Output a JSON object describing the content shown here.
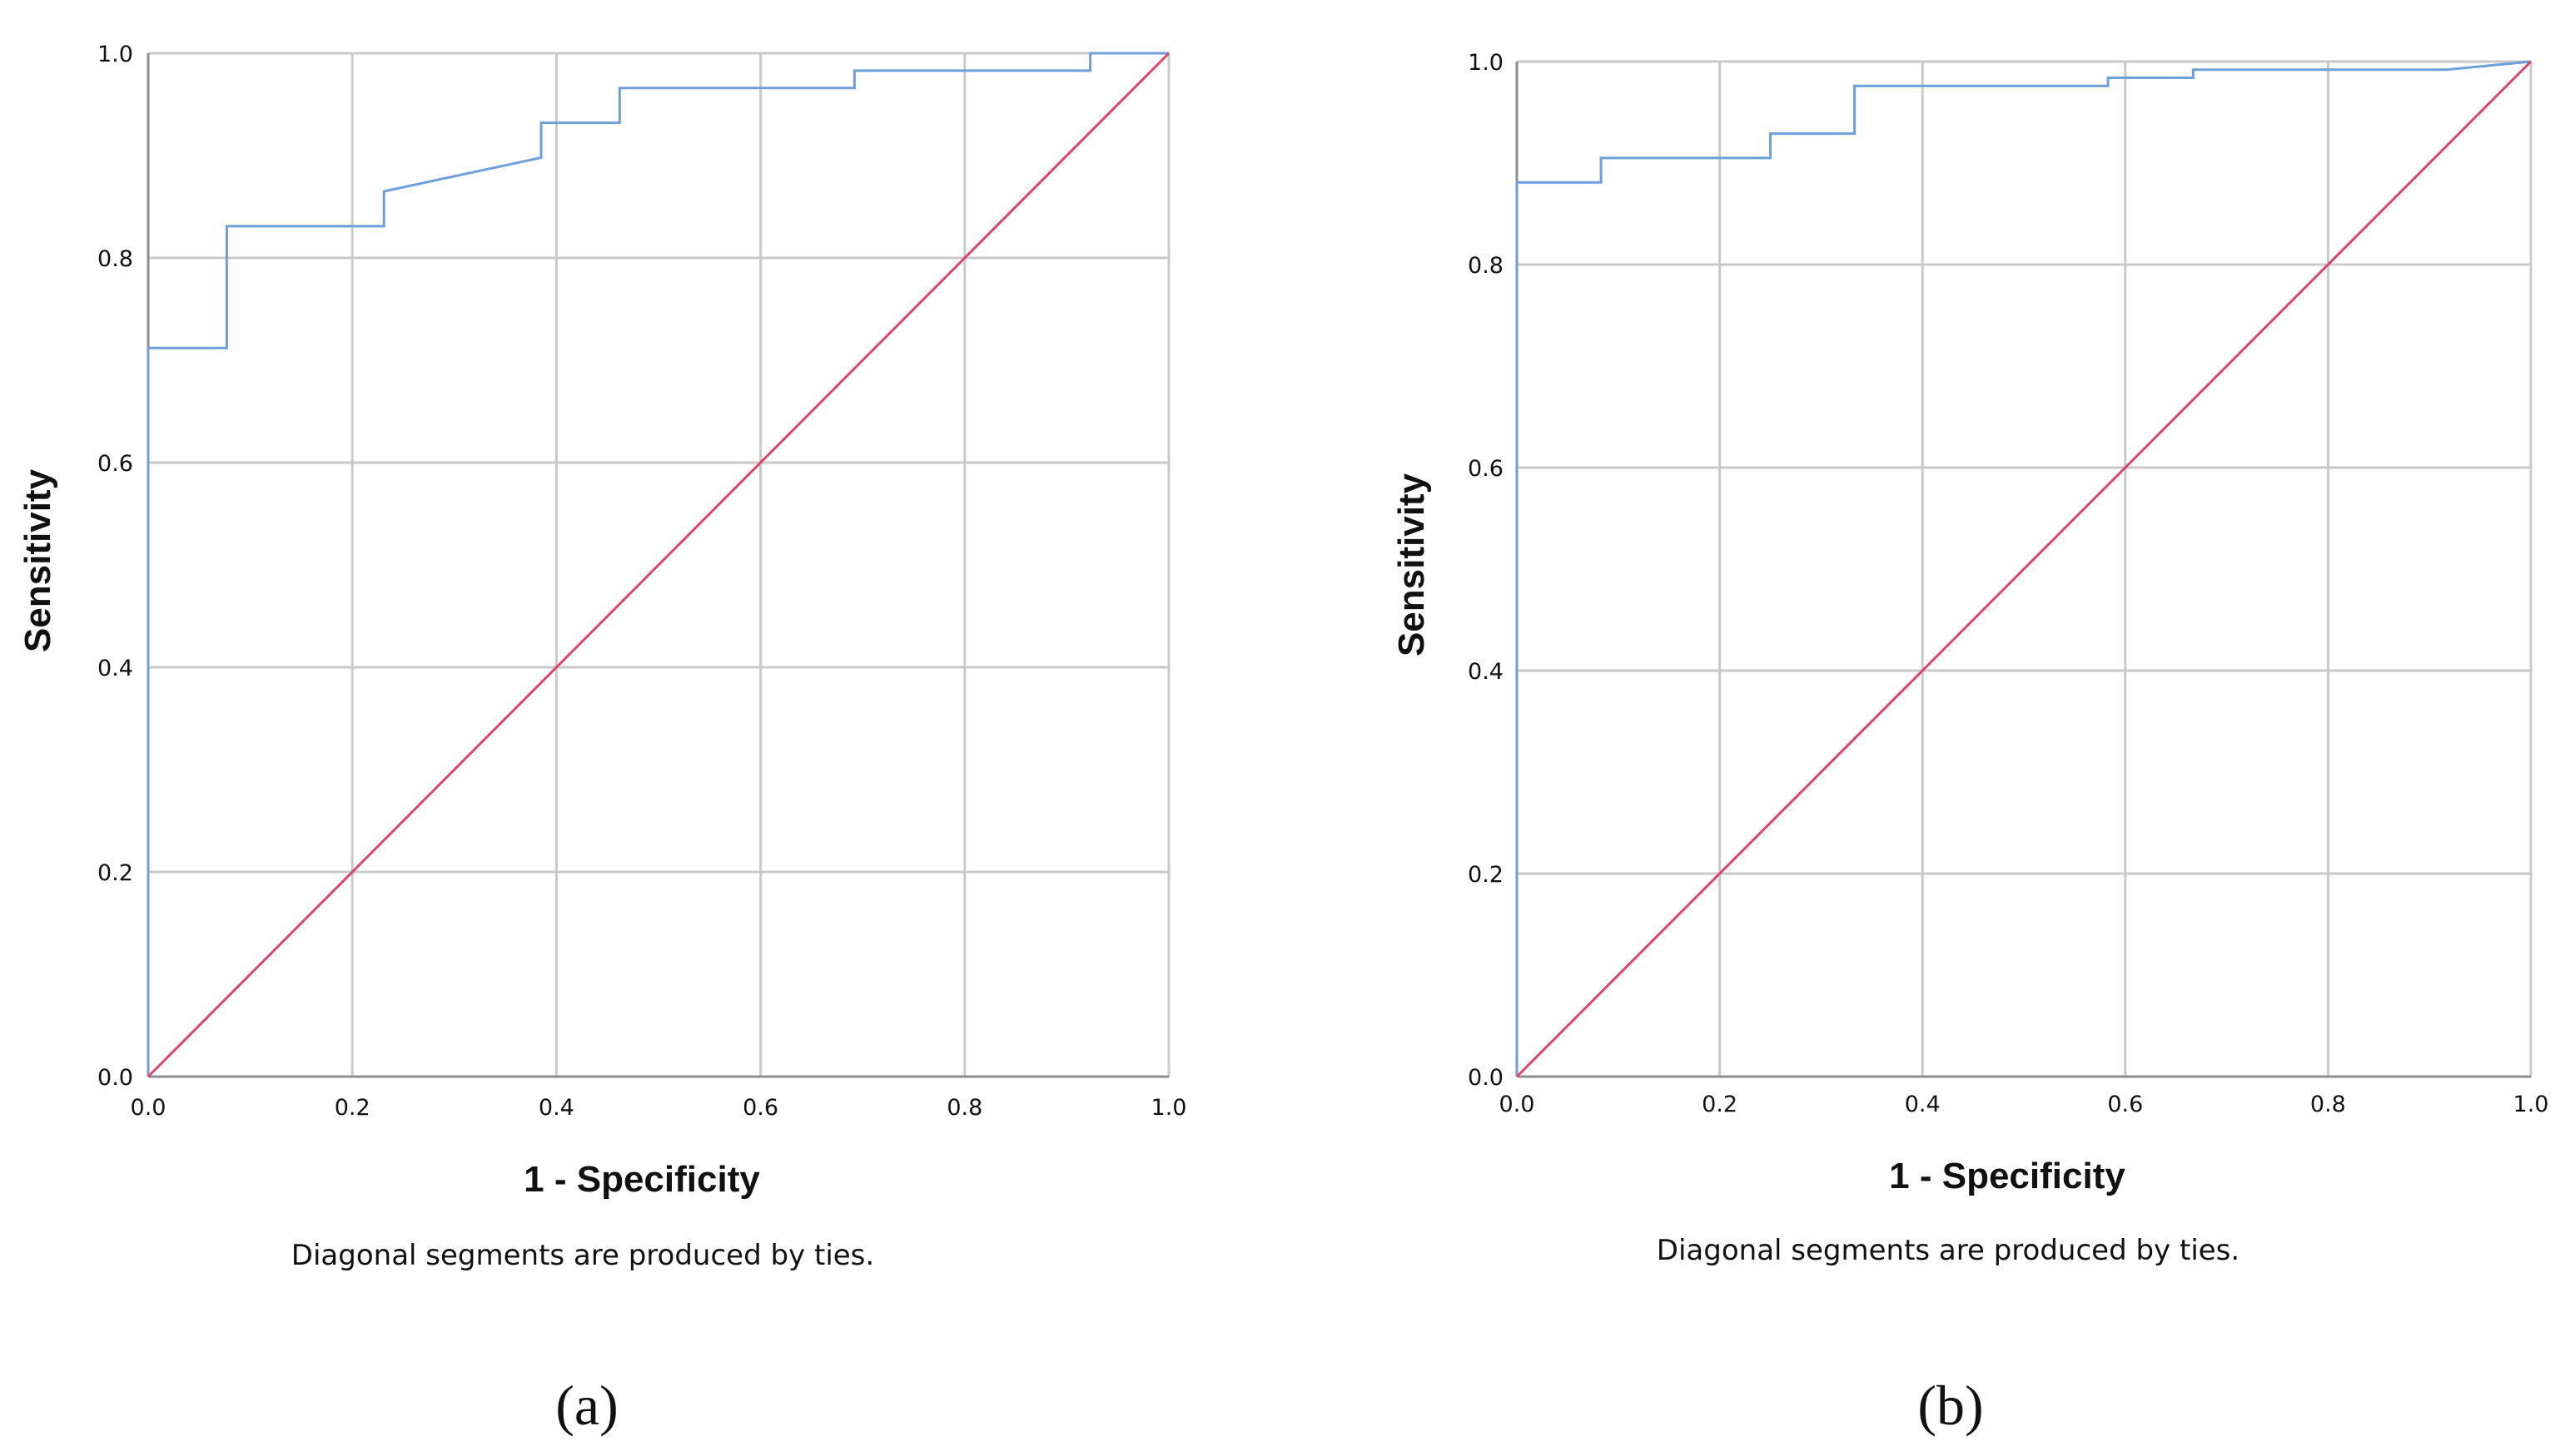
{
  "colors": {
    "roc_curve": "#6f9fdb",
    "reference_line": "#e0436b",
    "grid": "#c9c9c9",
    "axis": "#8c8c8c"
  },
  "chart_data": [
    {
      "type": "line",
      "panel_label": "(a)",
      "xlabel": "1 - Specificity",
      "ylabel": "Sensitivity",
      "footnote": "Diagonal segments are produced by ties.",
      "xlim": [
        0,
        1
      ],
      "ylim": [
        0,
        1
      ],
      "x_ticks": [
        "0.0",
        "0.2",
        "0.4",
        "0.6",
        "0.8",
        "1.0"
      ],
      "y_ticks": [
        "0.0",
        "0.2",
        "0.4",
        "0.6",
        "0.8",
        "1.0"
      ],
      "grid": true,
      "series": [
        {
          "x": [
            0,
            0,
            0.077,
            0.077,
            0.231,
            0.231,
            0.385,
            0.385,
            0.462,
            0.462,
            0.692,
            0.692,
            0.923,
            0.923,
            1.0
          ],
          "y": [
            0,
            0.712,
            0.712,
            0.831,
            0.831,
            0.865,
            0.898,
            0.932,
            0.932,
            0.966,
            0.966,
            0.983,
            0.983,
            1.0,
            1.0
          ]
        },
        {
          "x": [
            0,
            1
          ],
          "y": [
            0,
            1
          ]
        }
      ]
    },
    {
      "type": "line",
      "panel_label": "(b)",
      "xlabel": "1 - Specificity",
      "ylabel": "Sensitivity",
      "footnote": "Diagonal segments are produced by ties.",
      "xlim": [
        0,
        1
      ],
      "ylim": [
        0,
        1
      ],
      "x_ticks": [
        "0.0",
        "0.2",
        "0.4",
        "0.6",
        "0.8",
        "1.0"
      ],
      "y_ticks": [
        "0.0",
        "0.2",
        "0.4",
        "0.6",
        "0.8",
        "1.0"
      ],
      "grid": true,
      "series": [
        {
          "x": [
            0,
            0,
            0.083,
            0.083,
            0.25,
            0.25,
            0.333,
            0.333,
            0.583,
            0.583,
            0.667,
            0.667,
            0.917,
            1.0
          ],
          "y": [
            0,
            0.881,
            0.881,
            0.905,
            0.905,
            0.929,
            0.929,
            0.976,
            0.976,
            0.984,
            0.984,
            0.992,
            0.992,
            1.0
          ]
        },
        {
          "x": [
            0,
            1
          ],
          "y": [
            0,
            1
          ]
        }
      ]
    }
  ]
}
